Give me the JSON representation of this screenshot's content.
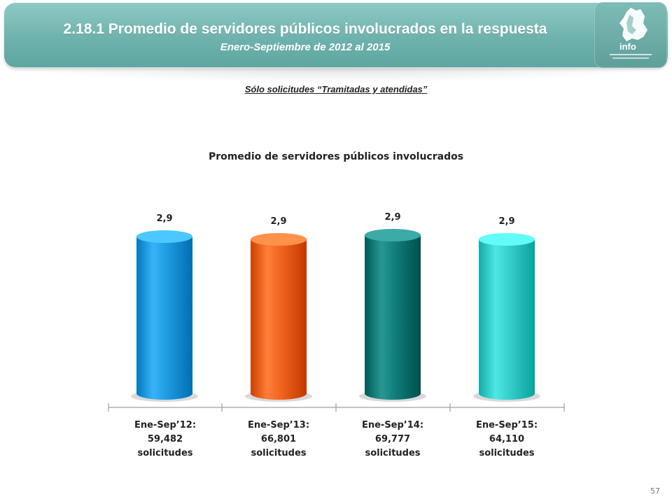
{
  "header": {
    "title": "2.18.1 Promedio de servidores públicos involucrados en la respuesta",
    "subtitle": "Enero-Septiembre de 2012 al 2015",
    "logo_text": "info"
  },
  "note": "Sólo solicitudes “Tramitadas y atendidas”",
  "page_number": "57",
  "colors": {
    "banner": "#6fb2ad",
    "bar_2012": "#1e9be0",
    "bar_2013": "#f0641e",
    "bar_2014": "#0f7d7a",
    "bar_2015": "#35cfcb"
  },
  "chart_data": {
    "type": "bar",
    "title": "Promedio de servidores públicos involucrados",
    "xlabel": "",
    "ylabel": "",
    "grid": false,
    "legend": "none",
    "categories": [
      [
        "Ene-Sep’12:",
        "59,482",
        "solicitudes"
      ],
      [
        "Ene-Sep’13:",
        "66,801",
        "solicitudes"
      ],
      [
        "Ene-Sep’14:",
        "69,777",
        "solicitudes"
      ],
      [
        "Ene-Sep’15:",
        "64,110",
        "solicitudes"
      ]
    ],
    "values": [
      2.9,
      2.9,
      2.9,
      2.9
    ],
    "data_labels": [
      "2,9",
      "2,9",
      "2,9",
      "2,9"
    ]
  }
}
